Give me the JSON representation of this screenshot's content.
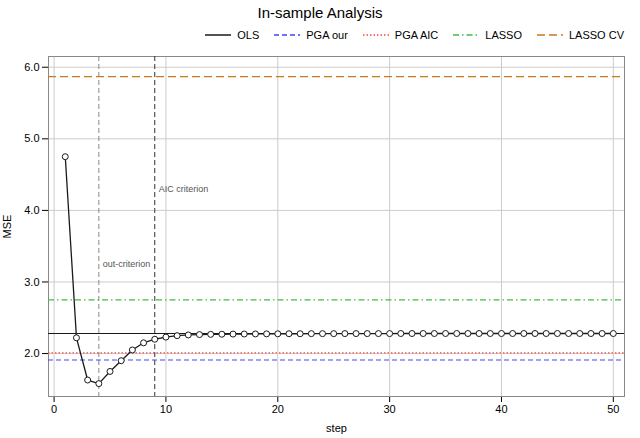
{
  "chart_data": {
    "type": "line",
    "title": "In-sample Analysis",
    "x_label": "step",
    "y_label": "MSE",
    "xlim": [
      -0.5,
      51
    ],
    "ylim": [
      1.4,
      6.15
    ],
    "xticks": [
      0,
      10,
      20,
      30,
      40,
      50
    ],
    "yticks": [
      2,
      3,
      4,
      5,
      6
    ],
    "grid": true,
    "legend": "upper right",
    "color": "#1a1a1a",
    "marker": "circle",
    "x": [
      1,
      2,
      3,
      4,
      5,
      6,
      7,
      8,
      9,
      10,
      11,
      12,
      13,
      14,
      15,
      16,
      17,
      18,
      19,
      20,
      21,
      22,
      23,
      24,
      25,
      26,
      27,
      28,
      29,
      30,
      31,
      32,
      33,
      34,
      35,
      36,
      37,
      38,
      39,
      40,
      41,
      42,
      43,
      44,
      45,
      46,
      47,
      48,
      49,
      50
    ],
    "values": [
      4.75,
      2.22,
      1.63,
      1.58,
      1.75,
      1.9,
      2.05,
      2.15,
      2.2,
      2.23,
      2.25,
      2.26,
      2.265,
      2.268,
      2.27,
      2.272,
      2.273,
      2.274,
      2.275,
      2.276,
      2.277,
      2.277,
      2.278,
      2.278,
      2.278,
      2.279,
      2.279,
      2.279,
      2.279,
      2.279,
      2.28,
      2.28,
      2.28,
      2.28,
      2.28,
      2.28,
      2.28,
      2.28,
      2.28,
      2.28,
      2.28,
      2.28,
      2.28,
      2.28,
      2.28,
      2.28,
      2.28,
      2.28,
      2.28,
      2.28
    ],
    "reference_lines": [
      {
        "name": "OLS",
        "value": 2.28,
        "color": "#1a1a1a",
        "line_style": "solid"
      },
      {
        "name": "PGA our",
        "value": 1.91,
        "color": "#4444ff",
        "line_style": "dashed"
      },
      {
        "name": "PGA AIC",
        "value": 2.01,
        "color": "#ff4444",
        "line_style": "dotted"
      },
      {
        "name": "LASSO",
        "value": 2.75,
        "color": "#44bb44",
        "line_style": "dashdot"
      },
      {
        "name": "LASSO CV",
        "value": 5.87,
        "color": "#cc7722",
        "line_style": "longdash"
      }
    ],
    "vlines": [
      {
        "x": 4,
        "y": 3.25,
        "label": "out-criterion",
        "color": "#888888",
        "line_style": "dashed"
      },
      {
        "x": 9,
        "y": 4.3,
        "label": "AIC criterion",
        "color": "#333333",
        "line_style": "dashed"
      }
    ]
  }
}
